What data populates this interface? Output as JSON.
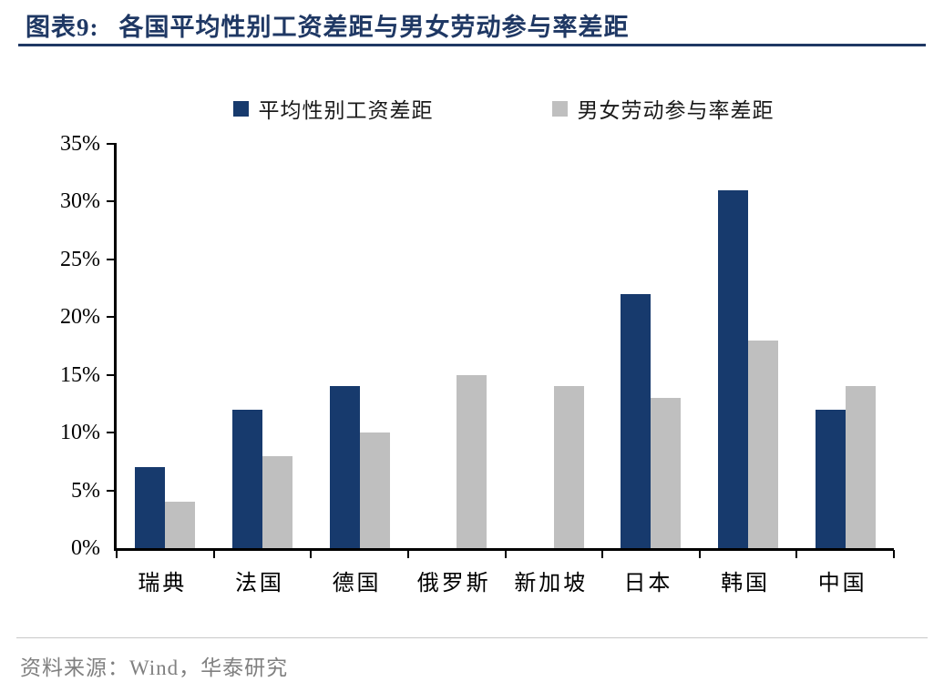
{
  "header": {
    "figure_label": "图表9:",
    "title": "各国平均性别工资差距与男女劳动参与率差距"
  },
  "chart_data": {
    "type": "bar",
    "categories": [
      "瑞典",
      "法国",
      "德国",
      "俄罗斯",
      "新加坡",
      "日本",
      "韩国",
      "中国"
    ],
    "series": [
      {
        "name": "平均性别工资差距",
        "color": "#173A6D",
        "values": [
          7,
          12,
          14,
          0,
          0,
          22,
          31,
          12
        ]
      },
      {
        "name": "男女劳动参与率差距",
        "color": "#BFBFBF",
        "values": [
          4,
          8,
          10,
          15,
          14,
          13,
          18,
          14
        ]
      }
    ],
    "ylim": [
      0,
      35
    ],
    "ytick_step": 5,
    "ytick_suffix": "%",
    "grid": false,
    "legend_position": "top",
    "title": "各国平均性别工资差距与男女劳动参与率差距",
    "xlabel": "",
    "ylabel": ""
  },
  "footer": {
    "source": "资料来源：Wind，华泰研究"
  },
  "colors": {
    "title": "#1F3864",
    "axis": "#000000",
    "source_text": "#808080",
    "divider": "#C9C9C9"
  }
}
